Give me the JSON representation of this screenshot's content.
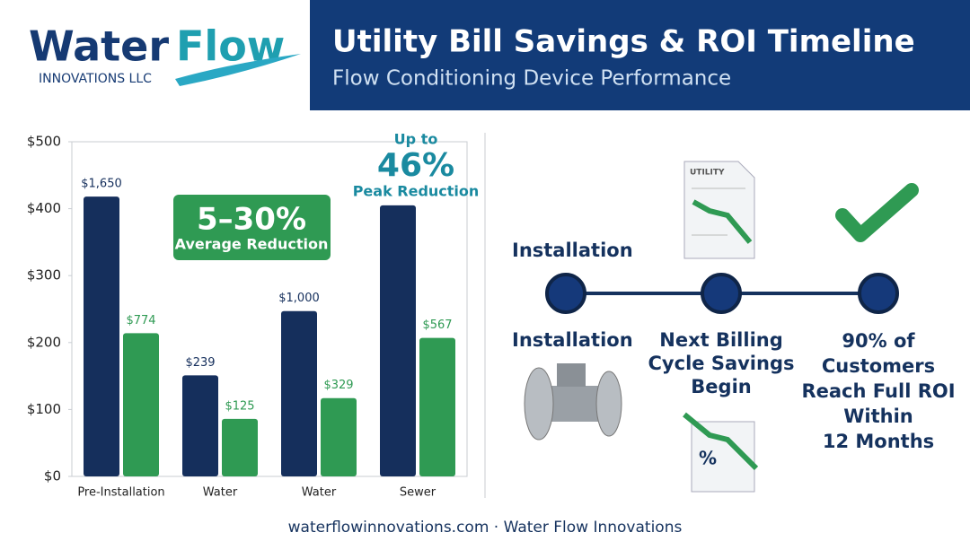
{
  "header": {
    "logo": {
      "word1": "Water",
      "word2": "Flow",
      "sub": "INNOVATIONS LLC"
    },
    "title": "Utility Bill Savings & ROI Timeline",
    "subtitle": "Flow Conditioning Device Performance"
  },
  "chart_data": {
    "type": "bar",
    "categories": [
      "Pre-Installation",
      "Water",
      "Water",
      "Sewer"
    ],
    "series": [
      {
        "color": "#152f5c",
        "values": [
          418,
          151,
          247,
          405
        ],
        "annotations": [
          "$1,650",
          "$239",
          "$1,000",
          null
        ]
      },
      {
        "color": "#2f9a53",
        "values": [
          214,
          86,
          117,
          207
        ],
        "annotations": [
          "$774",
          "$125",
          "$329",
          "$567"
        ]
      }
    ],
    "ylim": [
      0,
      500
    ],
    "yticks": [
      {
        "value": 0,
        "label": "$0"
      },
      {
        "value": 100,
        "label": "$100"
      },
      {
        "value": 200,
        "label": "$200"
      },
      {
        "value": 300,
        "label": "$300"
      },
      {
        "value": 400,
        "label": "$400"
      },
      {
        "value": 500,
        "label": "$500"
      }
    ],
    "badge": {
      "big": "5–30%",
      "small": "Average Reduction"
    },
    "peak": {
      "top": "Up to",
      "big": "46%",
      "small": "Peak Reduction"
    }
  },
  "timeline": {
    "top_label": "Installation",
    "icon_text": [
      "UTILITY",
      "%"
    ],
    "steps": [
      [
        "Installation"
      ],
      [
        "Next Billing",
        "Cycle Savings",
        "Begin"
      ],
      [
        "90% of",
        "Customers",
        "Reach Full ROI",
        "Within",
        "12 Months"
      ]
    ]
  },
  "footer": "waterflowinnovations.com · Water Flow Innovations"
}
